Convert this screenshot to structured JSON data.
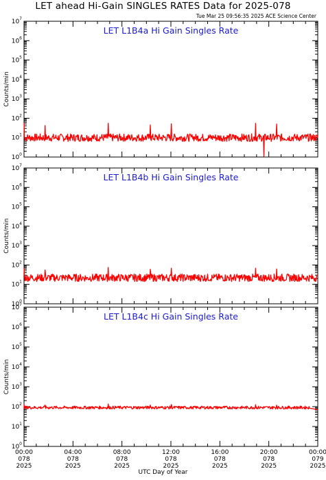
{
  "header": {
    "title": "LET ahead Hi-Gain SINGLES RATES Data for 2025-078",
    "timestamp": "Tue Mar 25 09:56:35 2025 ACE Science Center"
  },
  "x_axis_label": "UTC Day of Year",
  "x_ticks": [
    {
      "time": "00:00",
      "doy": "078",
      "year": "2025"
    },
    {
      "time": "04:00",
      "doy": "078",
      "year": "2025"
    },
    {
      "time": "08:00",
      "doy": "078",
      "year": "2025"
    },
    {
      "time": "12:00",
      "doy": "078",
      "year": "2025"
    },
    {
      "time": "16:00",
      "doy": "078",
      "year": "2025"
    },
    {
      "time": "20:00",
      "doy": "078",
      "year": "2025"
    },
    {
      "time": "00:00",
      "doy": "079",
      "year": "2025"
    }
  ],
  "y_ticks": [
    "0",
    "1",
    "2",
    "3",
    "4",
    "5",
    "6",
    "7"
  ],
  "line_color": "#ff0000",
  "title_color": "#1a1ad0",
  "chart_data": [
    {
      "type": "line",
      "title": "LET L1B4a Hi Gain Singles Rate",
      "ylabel": "Counts/min",
      "yscale": "log",
      "ylim": [
        1,
        10000000
      ],
      "xlim": [
        0,
        24
      ],
      "x_unit": "hours UTC",
      "baseline": 10,
      "spike_period_hours": 1.72,
      "x": [
        0,
        0.5,
        1,
        1.5,
        2,
        2.5,
        3,
        3.5,
        4,
        4.5,
        5,
        5.5,
        6,
        6.5,
        7,
        7.5,
        8,
        8.5,
        9,
        9.5,
        10,
        10.5,
        11,
        11.5,
        12,
        12.5,
        13,
        13.5,
        14,
        14.5,
        15,
        15.5,
        16,
        16.5,
        17,
        17.5,
        18,
        18.5,
        19,
        19.5,
        20,
        20.5,
        21,
        21.5,
        22,
        22.5,
        23,
        23.5,
        24
      ],
      "values": [
        9,
        60,
        8,
        11,
        42,
        10,
        7,
        12,
        9,
        40,
        11,
        6,
        10,
        55,
        9,
        8,
        13,
        50,
        10,
        7,
        9,
        45,
        12,
        8,
        10,
        52,
        9,
        11,
        8,
        48,
        10,
        7,
        12,
        58,
        9,
        10,
        8,
        55,
        11,
        1.2,
        10,
        50,
        9,
        12,
        8,
        62,
        10,
        9,
        11
      ]
    },
    {
      "type": "line",
      "title": "LET L1B4b Hi Gain Singles Rate",
      "ylabel": "Counts/min",
      "yscale": "log",
      "ylim": [
        1,
        10000000
      ],
      "xlim": [
        0,
        24
      ],
      "x_unit": "hours UTC",
      "baseline": 22,
      "spike_period_hours": 1.72,
      "x": [
        0,
        0.5,
        1,
        1.5,
        2,
        2.5,
        3,
        3.5,
        4,
        4.5,
        5,
        5.5,
        6,
        6.5,
        7,
        7.5,
        8,
        8.5,
        9,
        9.5,
        10,
        10.5,
        11,
        11.5,
        12,
        12.5,
        13,
        13.5,
        14,
        14.5,
        15,
        15.5,
        16,
        16.5,
        17,
        17.5,
        18,
        18.5,
        19,
        19.5,
        20,
        20.5,
        21,
        21.5,
        22,
        22.5,
        23,
        23.5,
        24
      ],
      "values": [
        20,
        70,
        22,
        18,
        55,
        21,
        19,
        25,
        20,
        58,
        22,
        17,
        21,
        75,
        20,
        19,
        24,
        62,
        21,
        18,
        22,
        60,
        23,
        19,
        21,
        68,
        20,
        22,
        19,
        65,
        21,
        18,
        23,
        72,
        20,
        21,
        19,
        68,
        22,
        20,
        21,
        62,
        20,
        23,
        19,
        70,
        21,
        20,
        22
      ]
    },
    {
      "type": "line",
      "title": "LET L1B4c Hi Gain Singles Rate",
      "ylabel": "Counts/min",
      "yscale": "log",
      "ylim": [
        1,
        10000000
      ],
      "xlim": [
        0,
        24
      ],
      "x_unit": "hours UTC",
      "baseline": 90,
      "spike_period_hours": 1.72,
      "x": [
        0,
        0.5,
        1,
        1.5,
        2,
        2.5,
        3,
        3.5,
        4,
        4.5,
        5,
        5.5,
        6,
        6.5,
        7,
        7.5,
        8,
        8.5,
        9,
        9.5,
        10,
        10.5,
        11,
        11.5,
        12,
        12.5,
        13,
        13.5,
        14,
        14.5,
        15,
        15.5,
        16,
        16.5,
        17,
        17.5,
        18,
        18.5,
        19,
        19.5,
        20,
        20.5,
        21,
        21.5,
        22,
        22.5,
        23,
        23.5,
        24
      ],
      "values": [
        88,
        130,
        90,
        85,
        120,
        92,
        86,
        95,
        88,
        125,
        91,
        84,
        90,
        135,
        89,
        87,
        94,
        122,
        90,
        86,
        91,
        120,
        93,
        88,
        90,
        128,
        89,
        92,
        87,
        124,
        90,
        85,
        93,
        130,
        88,
        90,
        86,
        126,
        91,
        89,
        90,
        118,
        88,
        92,
        86,
        122,
        89,
        80,
        70
      ]
    }
  ]
}
